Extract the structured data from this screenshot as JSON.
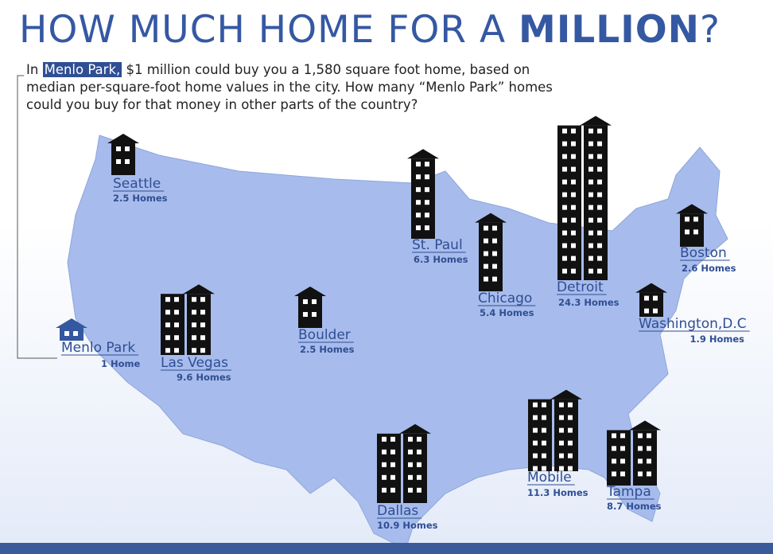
{
  "title": {
    "main": "HOW MUCH HOME FOR A ",
    "emphasis": "MILLION",
    "end": "?"
  },
  "intro": {
    "prefix": "In",
    "highlight": "Menlo Park,",
    "text": "$1 million could buy you a 1,580 square foot home, based on median per-square-foot home values in the city. How many “Menlo Park” homes could you buy for that money in other parts of the country?"
  },
  "cities": [
    {
      "name": "Menlo Park",
      "homes": 1,
      "homes_label": "1 Home",
      "color": "#34589f"
    },
    {
      "name": "Seattle",
      "homes": 2.5,
      "homes_label": "2.5 Homes",
      "color": "#111111"
    },
    {
      "name": "Las Vegas",
      "homes": 9.6,
      "homes_label": "9.6 Homes",
      "color": "#111111"
    },
    {
      "name": "Boulder",
      "homes": 2.5,
      "homes_label": "2.5 Homes",
      "color": "#111111"
    },
    {
      "name": "St. Paul",
      "homes": 6.3,
      "homes_label": "6.3 Homes",
      "color": "#111111"
    },
    {
      "name": "Chicago",
      "homes": 5.4,
      "homes_label": "5.4 Homes",
      "color": "#111111"
    },
    {
      "name": "Detroit",
      "homes": 24.3,
      "homes_label": "24.3 Homes",
      "color": "#111111"
    },
    {
      "name": "Boston",
      "homes": 2.6,
      "homes_label": "2.6 Homes",
      "color": "#111111"
    },
    {
      "name": "Washington,D.C",
      "homes": 1.9,
      "homes_label": "1.9 Homes",
      "color": "#111111"
    },
    {
      "name": "Dallas",
      "homes": 10.9,
      "homes_label": "10.9 Homes",
      "color": "#111111"
    },
    {
      "name": "Mobile",
      "homes": 11.3,
      "homes_label": "11.3 Homes",
      "color": "#111111"
    },
    {
      "name": "Tampa",
      "homes": 8.7,
      "homes_label": "8.7 Homes",
      "color": "#111111"
    }
  ]
}
